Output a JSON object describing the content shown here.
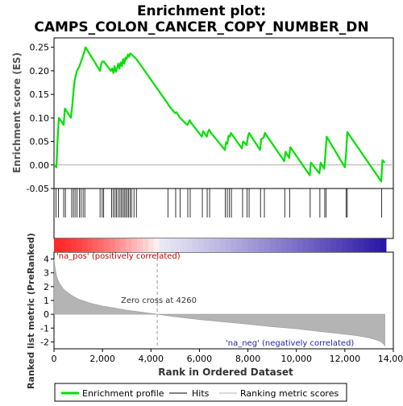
{
  "chart_data": {
    "type": "line",
    "title_line1": "Enrichment plot:",
    "title_line2": "CAMPS_COLON_CANCER_COPY_NUMBER_DN",
    "es_panel": {
      "ylabel": "Enrichment score (ES)",
      "ylim": [
        -0.05,
        0.27
      ],
      "yticks": [
        "0.25",
        "0.20",
        "0.15",
        "0.10",
        "0.05",
        "0.00",
        "-0.05"
      ],
      "ytick_values": [
        0.25,
        0.2,
        0.15,
        0.1,
        0.05,
        0.0,
        -0.05
      ],
      "profile_x": [
        0,
        100,
        150,
        200,
        400,
        450,
        700,
        750,
        800,
        850,
        950,
        1050,
        1150,
        1250,
        1300,
        1900,
        1950,
        2000,
        2050,
        2350,
        2400,
        2450,
        2500,
        2550,
        2600,
        2650,
        2700,
        2750,
        2800,
        2850,
        2900,
        2950,
        3000,
        3050,
        3100,
        3150,
        3200,
        3300,
        3400,
        4700,
        4750,
        5000,
        5050,
        5200,
        5500,
        5600,
        5650,
        6100,
        6150,
        6300,
        6350,
        6400,
        6450,
        7050,
        7100,
        7150,
        7200,
        7250,
        7300,
        7750,
        7800,
        7950,
        8000,
        8050,
        8500,
        8550,
        8650,
        8700,
        9500,
        9550,
        9700,
        9750,
        10550,
        10600,
        10950,
        11000,
        11150,
        11200,
        11250,
        12000,
        12050,
        12100,
        13500,
        13550,
        13650
      ],
      "profile_y": [
        0.0,
        -0.005,
        0.055,
        0.1,
        0.085,
        0.12,
        0.1,
        0.125,
        0.155,
        0.18,
        0.2,
        0.21,
        0.225,
        0.24,
        0.25,
        0.2,
        0.215,
        0.22,
        0.22,
        0.2,
        0.205,
        0.195,
        0.21,
        0.198,
        0.205,
        0.215,
        0.205,
        0.218,
        0.21,
        0.225,
        0.215,
        0.228,
        0.225,
        0.235,
        0.23,
        0.237,
        0.235,
        0.23,
        0.225,
        0.13,
        0.125,
        0.11,
        0.112,
        0.1,
        0.085,
        0.095,
        0.09,
        0.06,
        0.072,
        0.06,
        0.07,
        0.075,
        0.07,
        0.032,
        0.048,
        0.045,
        0.062,
        0.06,
        0.068,
        0.035,
        0.05,
        0.042,
        0.06,
        0.068,
        0.032,
        0.055,
        0.058,
        0.068,
        0.008,
        0.028,
        0.015,
        0.038,
        -0.022,
        0.005,
        -0.018,
        0.005,
        -0.008,
        0.025,
        0.06,
        -0.005,
        0.025,
        0.07,
        -0.035,
        0.01,
        0.005
      ]
    },
    "hits": [
      80,
      180,
      400,
      470,
      730,
      800,
      870,
      950,
      1050,
      1120,
      1200,
      1270,
      1900,
      1990,
      2050,
      2380,
      2450,
      2520,
      2580,
      2650,
      2720,
      2780,
      2840,
      2900,
      2960,
      3020,
      3080,
      3140,
      3200,
      3300,
      3400,
      4700,
      5020,
      5200,
      5520,
      5620,
      6120,
      6320,
      6420,
      7070,
      7150,
      7240,
      7320,
      7780,
      7970,
      8050,
      8520,
      8680,
      9520,
      9720,
      10570,
      10970,
      11170,
      11230,
      12050,
      12100,
      13520
    ],
    "bar_label_pos": "'na_pos' (positively correlated)",
    "bar_label_neg": "'na_neg' (negatively correlated)",
    "zero_cross_label": "Zero cross at 4260",
    "zero_cross_x": 4260,
    "metric_panel": {
      "ylabel": "Ranked list metric (PreRanked)",
      "ylim": [
        -2.5,
        4.5
      ],
      "yticks": [
        "4",
        "3",
        "2",
        "1",
        "0",
        "-1",
        "-2"
      ],
      "ytick_values": [
        4,
        3,
        2,
        1,
        0,
        -1,
        -2
      ],
      "curve_x": [
        0,
        50,
        100,
        200,
        400,
        700,
        1000,
        1500,
        2000,
        2500,
        3000,
        3500,
        4000,
        4260,
        5000,
        6000,
        7000,
        8000,
        9000,
        10000,
        11000,
        12000,
        12500,
        13000,
        13300,
        13500,
        13600,
        13650
      ],
      "curve_y": [
        4.0,
        3.3,
        2.8,
        2.3,
        1.8,
        1.4,
        1.1,
        0.8,
        0.6,
        0.45,
        0.3,
        0.18,
        0.06,
        0.0,
        -0.18,
        -0.38,
        -0.55,
        -0.72,
        -0.9,
        -1.05,
        -1.25,
        -1.45,
        -1.55,
        -1.7,
        -1.85,
        -2.0,
        -2.15,
        -2.3
      ]
    },
    "x_axis": {
      "xlabel": "Rank in Ordered Dataset",
      "xlim": [
        0,
        14000
      ],
      "xticks": [
        "0",
        "2,000",
        "4,000",
        "6,000",
        "8,000",
        "10,000",
        "12,000",
        "14,000"
      ],
      "xtick_values": [
        0,
        2000,
        4000,
        6000,
        8000,
        10000,
        12000,
        14000
      ],
      "n_genes": 13700
    },
    "legend": {
      "placement": "bottom",
      "entries": [
        "Enrichment profile",
        "Hits",
        "Ranking metric scores"
      ]
    },
    "colors": {
      "profile": "#00e000",
      "hits": "#000000",
      "metric_fill": "#b4b4b4",
      "zero_line": "#aaaaaa",
      "label_pos": "#cc0000",
      "label_neg": "#2222aa"
    }
  }
}
